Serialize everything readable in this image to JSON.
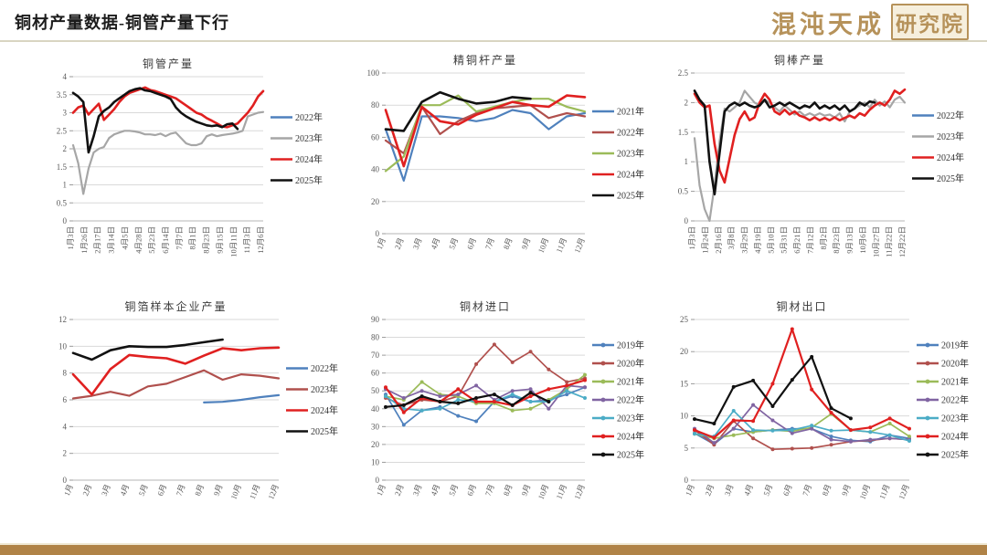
{
  "header": {
    "title": "铜材产量数据-铜管产量下行",
    "logo_text": "混沌天成",
    "logo_badge": "研究院"
  },
  "colors": {
    "brand_gold": "#b6925a",
    "footer_bar": "#b08347",
    "header_rule": "#d9d5c2",
    "grid_line": "#d9d9d9",
    "axis_line": "#b5b5b5",
    "series_blue": "#4F81BD",
    "series_gray": "#A6A6A6",
    "series_darkred": "#B0504D",
    "series_olive": "#9BBB59",
    "series_purple": "#8064A2",
    "series_teal": "#4BACC6",
    "series_red": "#E02020",
    "series_black": "#111111"
  },
  "chart_data": [
    {
      "id": "tube",
      "type": "line",
      "title": "铜管产量",
      "ylim": [
        0,
        4
      ],
      "y_step": 0.5,
      "markers": false,
      "grid": true,
      "legend_position": "right",
      "x_labels": [
        "1月3日",
        "1月26日",
        "2月17日",
        "3月14日",
        "4月5日",
        "4月28日",
        "5月23日",
        "6月14日",
        "7月7日",
        "8月1日",
        "8月23日",
        "9月15日",
        "10月11日",
        "11月3日",
        "12月6日"
      ],
      "series": [
        {
          "name": "2022年",
          "color": "#4F81BD",
          "values": []
        },
        {
          "name": "2023年",
          "color": "#A6A6A6",
          "values": [
            2.1,
            1.6,
            0.75,
            1.45,
            1.9,
            2.0,
            2.05,
            2.3,
            2.4,
            2.45,
            2.5,
            2.5,
            2.48,
            2.45,
            2.4,
            2.4,
            2.38,
            2.42,
            2.35,
            2.42,
            2.45,
            2.3,
            2.15,
            2.1,
            2.1,
            2.15,
            2.35,
            2.4,
            2.35,
            2.38,
            2.4,
            2.42,
            2.45,
            2.5,
            2.9,
            2.95,
            3.0,
            3.02
          ]
        },
        {
          "name": "2024年",
          "color": "#E02020",
          "values": [
            3.0,
            3.15,
            3.2,
            2.95,
            3.1,
            3.25,
            2.8,
            2.95,
            3.1,
            3.3,
            3.45,
            3.55,
            3.6,
            3.65,
            3.7,
            3.63,
            3.6,
            3.55,
            3.5,
            3.45,
            3.4,
            3.3,
            3.2,
            3.1,
            3.0,
            2.95,
            2.85,
            2.78,
            2.7,
            2.62,
            2.6,
            2.65,
            2.7,
            2.85,
            3.0,
            3.2,
            3.45,
            3.6
          ]
        },
        {
          "name": "2025年",
          "color": "#111111",
          "values": [
            3.55,
            3.45,
            3.3,
            1.9,
            2.35,
            2.9,
            3.05,
            3.15,
            3.3,
            3.4,
            3.5,
            3.6,
            3.65,
            3.68,
            3.62,
            3.6,
            3.55,
            3.5,
            3.45,
            3.38,
            3.15,
            3.0,
            2.9,
            2.82,
            2.75,
            2.7,
            2.65,
            2.63,
            2.65,
            2.6,
            2.68,
            2.7,
            2.55
          ]
        }
      ]
    },
    {
      "id": "rod",
      "type": "line",
      "title": "精铜杆产量",
      "ylim": [
        0,
        100
      ],
      "y_step": 20,
      "markers": false,
      "grid": true,
      "legend_position": "right",
      "x_labels": [
        "1月",
        "2月",
        "3月",
        "4月",
        "5月",
        "6月",
        "7月",
        "8月",
        "9月",
        "10月",
        "11月",
        "12月"
      ],
      "series": [
        {
          "name": "2021年",
          "color": "#4F81BD",
          "values": [
            65,
            33,
            73,
            73,
            72,
            70,
            72,
            77,
            75,
            65,
            73,
            75
          ]
        },
        {
          "name": "2022年",
          "color": "#B0504D",
          "values": [
            58,
            50,
            79,
            62,
            70,
            75,
            78,
            79,
            80,
            72,
            75,
            73
          ]
        },
        {
          "name": "2023年",
          "color": "#9BBB59",
          "values": [
            39,
            48,
            80,
            80,
            86,
            76,
            79,
            82,
            84,
            84,
            79,
            76
          ]
        },
        {
          "name": "2024年",
          "color": "#E02020",
          "values": [
            77,
            42,
            79,
            70,
            68,
            74,
            78,
            82,
            80,
            79,
            86,
            85
          ]
        },
        {
          "name": "2025年",
          "color": "#111111",
          "values": [
            65,
            64,
            82,
            88,
            84,
            81,
            82,
            85,
            84
          ]
        }
      ]
    },
    {
      "id": "bar",
      "type": "line",
      "title": "铜棒产量",
      "ylim": [
        0,
        2.5
      ],
      "y_step": 0.5,
      "markers": false,
      "grid": true,
      "legend_position": "right",
      "x_labels": [
        "1月3日",
        "1月24日",
        "2月16日",
        "3月8日",
        "3月29日",
        "4月19日",
        "5月10日",
        "5月31日",
        "6月21日",
        "7月12日",
        "8月2日",
        "8月23日",
        "9月13日",
        "10月6日",
        "10月27日",
        "11月22日",
        "12月22日"
      ],
      "series": [
        {
          "name": "2022年",
          "color": "#4F81BD",
          "values": []
        },
        {
          "name": "2023年",
          "color": "#A6A6A6",
          "values": [
            1.4,
            0.6,
            0.2,
            0.0,
            0.6,
            1.35,
            1.9,
            1.85,
            1.92,
            2.0,
            2.2,
            2.1,
            2.0,
            1.95,
            2.05,
            2.0,
            1.92,
            1.85,
            1.95,
            1.88,
            1.8,
            1.85,
            1.78,
            1.82,
            1.78,
            1.82,
            1.78,
            1.8,
            1.75,
            1.82,
            1.68,
            1.85,
            1.9,
            1.95,
            2.0,
            1.92,
            2.05,
            1.95,
            2.02,
            1.92,
            2.05,
            2.1,
            2.0
          ]
        },
        {
          "name": "2024年",
          "color": "#E02020",
          "values": [
            2.15,
            2.0,
            1.92,
            1.95,
            1.3,
            0.85,
            0.65,
            1.05,
            1.45,
            1.72,
            1.85,
            1.7,
            1.75,
            2.0,
            2.15,
            2.05,
            1.85,
            1.8,
            1.88,
            1.8,
            1.85,
            1.78,
            1.75,
            1.7,
            1.75,
            1.7,
            1.74,
            1.7,
            1.75,
            1.7,
            1.74,
            1.78,
            1.74,
            1.82,
            1.78,
            1.88,
            1.95,
            2.0,
            1.95,
            2.05,
            2.2,
            2.15,
            2.22
          ]
        },
        {
          "name": "2025年",
          "color": "#111111",
          "values": [
            2.2,
            2.05,
            1.95,
            1.0,
            0.45,
            1.15,
            1.85,
            1.95,
            2.0,
            1.95,
            2.0,
            1.95,
            1.92,
            1.95,
            2.05,
            1.92,
            1.95,
            2.0,
            1.95,
            2.0,
            1.95,
            1.9,
            1.95,
            1.92,
            2.0,
            1.9,
            1.95,
            1.9,
            1.95,
            1.88,
            1.95,
            1.85,
            1.9,
            2.0,
            1.95,
            2.02,
            2.0
          ]
        }
      ]
    },
    {
      "id": "foil",
      "type": "line",
      "title": "铜箔样本企业产量",
      "ylim": [
        0,
        12
      ],
      "y_step": 2,
      "markers": false,
      "grid": true,
      "legend_position": "right",
      "x_labels": [
        "1月",
        "2月",
        "3月",
        "4月",
        "5月",
        "6月",
        "7月",
        "8月",
        "9月",
        "10月",
        "11月",
        "12月"
      ],
      "series": [
        {
          "name": "2022年",
          "color": "#4F81BD",
          "values": [
            null,
            null,
            null,
            null,
            null,
            null,
            null,
            5.8,
            5.85,
            6.0,
            6.2,
            6.35
          ]
        },
        {
          "name": "2023年",
          "color": "#B0504D",
          "values": [
            6.1,
            6.3,
            6.6,
            6.3,
            7.0,
            7.2,
            7.7,
            8.2,
            7.5,
            7.9,
            7.8,
            7.6
          ]
        },
        {
          "name": "2024年",
          "color": "#E02020",
          "values": [
            7.9,
            6.4,
            8.3,
            9.35,
            9.2,
            9.1,
            8.7,
            9.3,
            9.85,
            9.7,
            9.85,
            9.9
          ]
        },
        {
          "name": "2025年",
          "color": "#111111",
          "values": [
            9.5,
            9.0,
            9.7,
            10.0,
            9.95,
            9.95,
            10.1,
            10.3,
            10.5
          ]
        }
      ]
    },
    {
      "id": "import",
      "type": "line",
      "title": "铜材进口",
      "ylim": [
        0,
        90
      ],
      "y_step": 10,
      "markers": true,
      "grid": true,
      "legend_position": "right",
      "x_labels": [
        "1月",
        "2月",
        "3月",
        "4月",
        "5月",
        "6月",
        "7月",
        "8月",
        "9月",
        "10月",
        "11月",
        "12月"
      ],
      "series": [
        {
          "name": "2019年",
          "color": "#4F81BD",
          "values": [
            48,
            31,
            39,
            41,
            36,
            33,
            44,
            47,
            44,
            45,
            48,
            52
          ]
        },
        {
          "name": "2020年",
          "color": "#B0504D",
          "values": [
            46,
            42,
            45,
            44,
            47,
            65,
            76,
            66,
            72,
            62,
            55,
            57
          ]
        },
        {
          "name": "2021年",
          "color": "#9BBB59",
          "values": [
            47,
            45,
            55,
            48,
            47,
            43,
            43,
            39,
            40,
            45,
            51,
            59
          ]
        },
        {
          "name": "2022年",
          "color": "#8064A2",
          "values": [
            51,
            46,
            50,
            47,
            48,
            53,
            45,
            50,
            51,
            40,
            53,
            52
          ]
        },
        {
          "name": "2023年",
          "color": "#4BACC6",
          "values": [
            47,
            40,
            39,
            40,
            45,
            44,
            44,
            48,
            44,
            44,
            50,
            46
          ]
        },
        {
          "name": "2024年",
          "color": "#E02020",
          "values": [
            52,
            38,
            46,
            44,
            51,
            44,
            44,
            42,
            47,
            51,
            53,
            56
          ]
        },
        {
          "name": "2025年",
          "color": "#111111",
          "values": [
            41,
            42,
            47,
            44,
            43,
            46,
            48,
            42,
            49,
            44
          ]
        }
      ]
    },
    {
      "id": "export",
      "type": "line",
      "title": "铜材出口",
      "ylim": [
        0,
        25
      ],
      "y_step": 5,
      "markers": true,
      "grid": true,
      "legend_position": "right",
      "x_labels": [
        "1月",
        "2月",
        "3月",
        "4月",
        "5月",
        "6月",
        "7月",
        "8月",
        "9月",
        "10月",
        "11月",
        "12月"
      ],
      "series": [
        {
          "name": "2019年",
          "color": "#4F81BD",
          "values": [
            7.3,
            5.6,
            8.0,
            7.5,
            7.8,
            8.0,
            8.0,
            6.8,
            6.2,
            6.0,
            7.0,
            6.5
          ]
        },
        {
          "name": "2020年",
          "color": "#B0504D",
          "values": [
            7.8,
            5.5,
            9.2,
            6.5,
            4.8,
            4.9,
            5.0,
            5.5,
            6.0,
            6.2,
            6.5,
            6.3
          ]
        },
        {
          "name": "2021年",
          "color": "#9BBB59",
          "values": [
            7.2,
            6.5,
            7.0,
            7.5,
            7.8,
            7.6,
            8.2,
            10.3,
            7.8,
            7.5,
            8.8,
            6.8
          ]
        },
        {
          "name": "2022年",
          "color": "#8064A2",
          "values": [
            8.0,
            5.8,
            8.0,
            11.7,
            9.3,
            7.3,
            8.0,
            6.3,
            6.0,
            6.3,
            6.5,
            6.3
          ]
        },
        {
          "name": "2023年",
          "color": "#4BACC6",
          "values": [
            7.2,
            6.8,
            10.8,
            7.8,
            7.7,
            7.8,
            8.5,
            7.7,
            7.8,
            7.5,
            7.0,
            6.1
          ]
        },
        {
          "name": "2024年",
          "color": "#E02020",
          "values": [
            7.8,
            6.6,
            9.3,
            9.2,
            15.0,
            23.5,
            14.1,
            10.5,
            7.8,
            8.2,
            9.6,
            8.0
          ]
        },
        {
          "name": "2025年",
          "color": "#111111",
          "values": [
            9.5,
            8.8,
            14.5,
            15.5,
            11.5,
            15.6,
            19.2,
            11.2,
            9.6
          ]
        }
      ]
    }
  ]
}
